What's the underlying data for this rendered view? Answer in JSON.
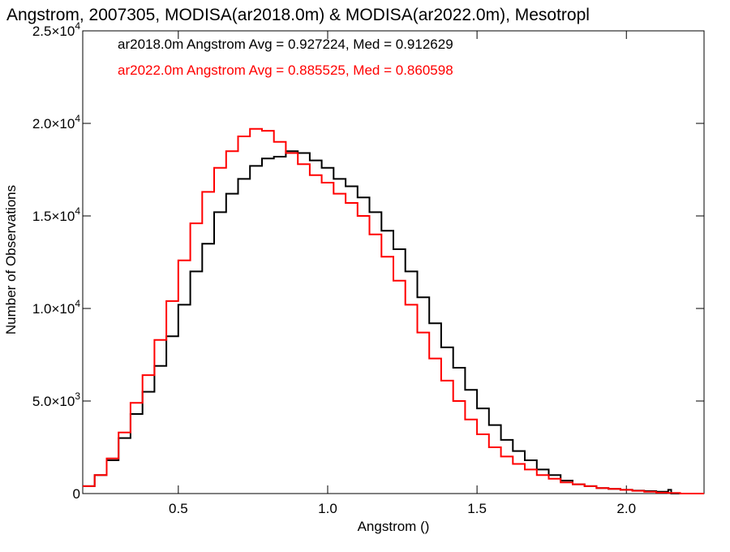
{
  "chart_data": {
    "type": "line",
    "title": "Angstrom, 2007305, MODISA(ar2018.0m) & MODISA(ar2022.0m), Mesotropl",
    "xlabel": "Angstrom ()",
    "ylabel": "Number of Observations",
    "xlim": [
      0.18,
      2.26
    ],
    "ylim": [
      0,
      25000
    ],
    "x_ticks": [
      {
        "value": 0.5,
        "label": "0.5"
      },
      {
        "value": 1.0,
        "label": "1.0"
      },
      {
        "value": 1.5,
        "label": "1.5"
      },
      {
        "value": 2.0,
        "label": "2.0"
      }
    ],
    "y_ticks": [
      {
        "value": 0,
        "mant": "0",
        "exp": ""
      },
      {
        "value": 5000,
        "mant": "5.0×10",
        "exp": "3"
      },
      {
        "value": 10000,
        "mant": "1.0×10",
        "exp": "4"
      },
      {
        "value": 15000,
        "mant": "1.5×10",
        "exp": "4"
      },
      {
        "value": 20000,
        "mant": "2.0×10",
        "exp": "4"
      },
      {
        "value": 25000,
        "mant": "2.5×10",
        "exp": "4"
      }
    ],
    "legend_position": "top-left",
    "series": [
      {
        "name": "ar2018.0m",
        "color": "#000000",
        "annotation": "ar2018.0m Angstrom Avg = 0.927224, Med = 0.912629",
        "x": [
          0.18,
          0.22,
          0.26,
          0.3,
          0.34,
          0.38,
          0.42,
          0.46,
          0.5,
          0.54,
          0.58,
          0.62,
          0.66,
          0.7,
          0.74,
          0.78,
          0.82,
          0.86,
          0.9,
          0.94,
          0.98,
          1.02,
          1.06,
          1.1,
          1.14,
          1.18,
          1.22,
          1.26,
          1.3,
          1.34,
          1.38,
          1.42,
          1.46,
          1.5,
          1.54,
          1.58,
          1.62,
          1.66,
          1.7,
          1.74,
          1.78,
          1.82,
          1.86,
          1.9,
          1.94,
          1.98,
          2.02,
          2.06,
          2.1,
          2.14,
          2.15,
          2.18,
          2.26
        ],
        "y": [
          400,
          1000,
          1800,
          3000,
          4300,
          5500,
          6900,
          8500,
          10200,
          12000,
          13500,
          15200,
          16200,
          17000,
          17700,
          18100,
          18200,
          18500,
          18400,
          18000,
          17600,
          17000,
          16600,
          16000,
          15200,
          14200,
          13200,
          12000,
          10600,
          9200,
          7900,
          6800,
          5600,
          4600,
          3700,
          2900,
          2300,
          1800,
          1300,
          1000,
          700,
          500,
          400,
          300,
          250,
          200,
          160,
          130,
          100,
          200,
          0,
          0,
          0
        ]
      },
      {
        "name": "ar2022.0m",
        "color": "#ff0000",
        "annotation": "ar2022.0m Angstrom Avg = 0.885525, Med = 0.860598",
        "x": [
          0.18,
          0.22,
          0.26,
          0.3,
          0.34,
          0.38,
          0.42,
          0.46,
          0.5,
          0.54,
          0.58,
          0.62,
          0.66,
          0.7,
          0.74,
          0.78,
          0.82,
          0.86,
          0.9,
          0.94,
          0.98,
          1.02,
          1.06,
          1.1,
          1.14,
          1.18,
          1.22,
          1.26,
          1.3,
          1.34,
          1.38,
          1.42,
          1.46,
          1.5,
          1.54,
          1.58,
          1.62,
          1.66,
          1.7,
          1.74,
          1.78,
          1.82,
          1.86,
          1.9,
          1.94,
          1.98,
          2.02,
          2.06,
          2.1,
          2.14,
          2.18,
          2.26
        ],
        "y": [
          400,
          1000,
          1900,
          3300,
          4900,
          6400,
          8300,
          10400,
          12600,
          14600,
          16300,
          17600,
          18500,
          19300,
          19700,
          19600,
          19000,
          18400,
          17800,
          17200,
          16800,
          16200,
          15700,
          15000,
          14000,
          12800,
          11500,
          10200,
          8700,
          7300,
          6100,
          5000,
          4000,
          3200,
          2500,
          2000,
          1600,
          1300,
          1000,
          800,
          600,
          500,
          400,
          300,
          250,
          200,
          150,
          100,
          50,
          30,
          0,
          0
        ]
      }
    ]
  }
}
